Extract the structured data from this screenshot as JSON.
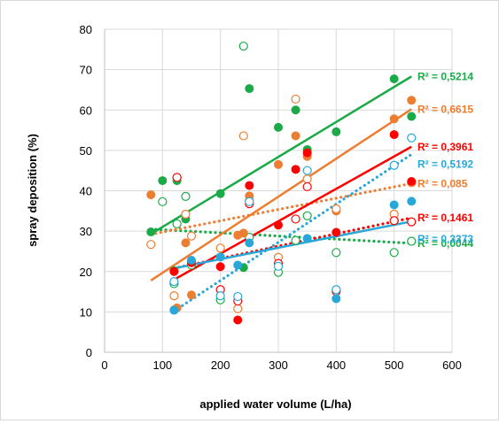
{
  "chart_data": {
    "type": "scatter",
    "xlabel": "applied water volume (L/ha)",
    "ylabel": "spray deposition (%)",
    "xlim": [
      0,
      600
    ],
    "ylim": [
      0,
      80
    ],
    "x_ticks": [
      "0",
      "100",
      "200",
      "300",
      "400",
      "500",
      "600"
    ],
    "y_ticks": [
      "0",
      "10",
      "20",
      "30",
      "40",
      "50",
      "60",
      "70",
      "80"
    ],
    "grid": "both",
    "legend": "none",
    "series": [
      {
        "color": "#1aaa48",
        "marker": "filled",
        "line": "solid",
        "r2_label": "R² = 0,5214",
        "points": [
          [
            80,
            29.8
          ],
          [
            100,
            42.5
          ],
          [
            120,
            20.2
          ],
          [
            125,
            42.5
          ],
          [
            140,
            33
          ],
          [
            150,
            22.6
          ],
          [
            200,
            39.3
          ],
          [
            240,
            21
          ],
          [
            250,
            65.3
          ],
          [
            300,
            55.7
          ],
          [
            330,
            60
          ],
          [
            350,
            50.2
          ],
          [
            400,
            54.6
          ],
          [
            500,
            67.7
          ],
          [
            530,
            58.4
          ]
        ],
        "trend": [
          [
            80,
            29.3
          ],
          [
            530,
            68.3
          ]
        ]
      },
      {
        "color": "#1aaa48",
        "marker": "open",
        "line": "dotted",
        "r2_label": "R² = 0,0044",
        "points": [
          [
            100,
            37.3
          ],
          [
            120,
            17
          ],
          [
            125,
            31.8
          ],
          [
            140,
            38.6
          ],
          [
            150,
            21.6
          ],
          [
            200,
            13
          ],
          [
            240,
            75.8
          ],
          [
            250,
            28.5
          ],
          [
            300,
            19.8
          ],
          [
            330,
            27.7
          ],
          [
            350,
            33.8
          ],
          [
            400,
            24.7
          ],
          [
            500,
            24.7
          ],
          [
            530,
            27.5
          ]
        ],
        "trend": [
          [
            80,
            30.5
          ],
          [
            530,
            27
          ]
        ]
      },
      {
        "color": "#ed7d31",
        "marker": "filled",
        "line": "solid",
        "r2_label": "R² = 0,6615",
        "points": [
          [
            80,
            39
          ],
          [
            120,
            10.5
          ],
          [
            125,
            11
          ],
          [
            140,
            27.1
          ],
          [
            150,
            14.2
          ],
          [
            230,
            29
          ],
          [
            240,
            29.5
          ],
          [
            250,
            38.7
          ],
          [
            300,
            46.5
          ],
          [
            330,
            53.6
          ],
          [
            350,
            48.5
          ],
          [
            400,
            35
          ],
          [
            500,
            57.8
          ],
          [
            530,
            62.4
          ]
        ],
        "trend": [
          [
            80,
            17.8
          ],
          [
            530,
            60.2
          ]
        ]
      },
      {
        "color": "#ed7d31",
        "marker": "open",
        "line": "dotted",
        "r2_label": "R² = 0,085",
        "points": [
          [
            80,
            26.7
          ],
          [
            120,
            14
          ],
          [
            125,
            43.3
          ],
          [
            140,
            34.2
          ],
          [
            150,
            28.8
          ],
          [
            200,
            25.8
          ],
          [
            230,
            10.8
          ],
          [
            240,
            53.6
          ],
          [
            250,
            37.5
          ],
          [
            300,
            23.5
          ],
          [
            330,
            62.7
          ],
          [
            350,
            42.9
          ],
          [
            400,
            35.5
          ],
          [
            500,
            34.2
          ],
          [
            530,
            42
          ]
        ],
        "trend": [
          [
            80,
            29.2
          ],
          [
            530,
            41.8
          ]
        ]
      },
      {
        "color": "#ff0000",
        "marker": "filled",
        "line": "solid",
        "r2_label": "R² = 0,3961",
        "points": [
          [
            120,
            20
          ],
          [
            150,
            22.2
          ],
          [
            200,
            21.2
          ],
          [
            230,
            8
          ],
          [
            250,
            41.3
          ],
          [
            300,
            31.5
          ],
          [
            330,
            45.3
          ],
          [
            350,
            49.4
          ],
          [
            400,
            29.7
          ],
          [
            500,
            53.9
          ],
          [
            530,
            42.3
          ]
        ],
        "trend": [
          [
            120,
            18
          ],
          [
            530,
            50.9
          ]
        ]
      },
      {
        "color": "#ff0000",
        "marker": "open",
        "line": "dotted",
        "r2_label": "R² = 0,1461",
        "points": [
          [
            125,
            43.3
          ],
          [
            200,
            15.5
          ],
          [
            230,
            12.7
          ],
          [
            250,
            36.8
          ],
          [
            300,
            22
          ],
          [
            330,
            33
          ],
          [
            350,
            41
          ],
          [
            400,
            15.1
          ],
          [
            500,
            32.6
          ],
          [
            530,
            32.3
          ]
        ],
        "trend": [
          [
            120,
            20.8
          ],
          [
            530,
            33.3
          ]
        ]
      },
      {
        "color": "#2aa7d9",
        "marker": "filled",
        "line": "solid",
        "r2_label": "R² = 0,3373",
        "points": [
          [
            120,
            10.4
          ],
          [
            150,
            22.8
          ],
          [
            200,
            23.6
          ],
          [
            230,
            21.6
          ],
          [
            250,
            27.1
          ],
          [
            350,
            28.2
          ],
          [
            400,
            13.3
          ],
          [
            500,
            36.5
          ],
          [
            530,
            37.4
          ]
        ],
        "trend": [
          [
            120,
            20.8
          ],
          [
            530,
            32.4
          ]
        ]
      },
      {
        "color": "#2aa7d9",
        "marker": "open",
        "line": "dotted",
        "r2_label": "R² = 0,5192",
        "points": [
          [
            120,
            17.5
          ],
          [
            200,
            14
          ],
          [
            230,
            13.8
          ],
          [
            250,
            37.3
          ],
          [
            300,
            21.3
          ],
          [
            350,
            45
          ],
          [
            400,
            15.5
          ],
          [
            500,
            46.3
          ],
          [
            530,
            53.1
          ]
        ],
        "trend": [
          [
            120,
            10.2
          ],
          [
            530,
            49
          ]
        ]
      }
    ]
  }
}
